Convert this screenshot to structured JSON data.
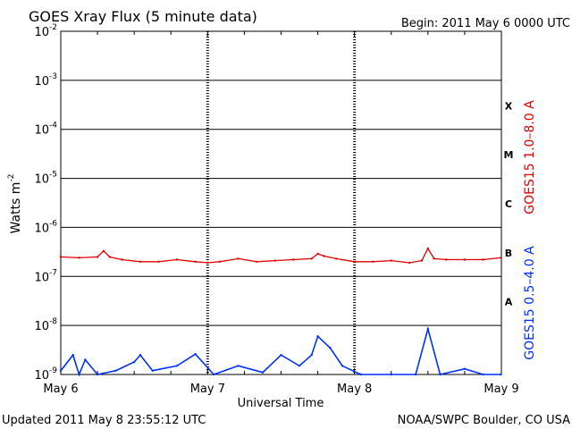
{
  "chart_data": {
    "type": "line",
    "title": "GOES Xray Flux (5 minute data)",
    "begin": "Begin:  2011 May 6 0000 UTC",
    "updated": "Updated 2011 May  8 23:55:12 UTC",
    "source": "NOAA/SWPC Boulder, CO USA",
    "xlabel": "Universal Time",
    "ylabel": "Watts m",
    "ylabel_sup": "-2",
    "y_scale": "log",
    "ylim": [
      1e-09,
      0.01
    ],
    "xlim": [
      "2011-05-06 00:00",
      "2011-05-09 00:00"
    ],
    "x_tick_labels": [
      "May 6",
      "May 7",
      "May 8",
      "May 9"
    ],
    "y_ticks": [
      {
        "base": "10",
        "exp": "-9",
        "value": 1e-09
      },
      {
        "base": "10",
        "exp": "-8",
        "value": 1e-08
      },
      {
        "base": "10",
        "exp": "-7",
        "value": 1e-07
      },
      {
        "base": "10",
        "exp": "-6",
        "value": 1e-06
      },
      {
        "base": "10",
        "exp": "-5",
        "value": 1e-05
      },
      {
        "base": "10",
        "exp": "-4",
        "value": 0.0001
      },
      {
        "base": "10",
        "exp": "-3",
        "value": 0.001
      },
      {
        "base": "10",
        "exp": "-2",
        "value": 0.01
      }
    ],
    "flare_classes": [
      {
        "label": "A",
        "min": 1e-08,
        "max": 1e-07
      },
      {
        "label": "B",
        "min": 1e-07,
        "max": 1e-06
      },
      {
        "label": "C",
        "min": 1e-06,
        "max": 1e-05
      },
      {
        "label": "M",
        "min": 1e-05,
        "max": 0.0001
      },
      {
        "label": "X",
        "min": 0.0001,
        "max": 0.001
      }
    ],
    "grid": true,
    "series": [
      {
        "name": "GOES15 1.0–8.0 A",
        "color": "#e00000",
        "x": [
          "2011-05-06 00:00",
          "2011-05-06 03:00",
          "2011-05-06 06:00",
          "2011-05-06 07:00",
          "2011-05-06 08:00",
          "2011-05-06 10:00",
          "2011-05-06 13:00",
          "2011-05-06 16:00",
          "2011-05-06 19:00",
          "2011-05-06 22:00",
          "2011-05-07 00:00",
          "2011-05-07 02:00",
          "2011-05-07 05:00",
          "2011-05-07 08:00",
          "2011-05-07 11:00",
          "2011-05-07 14:00",
          "2011-05-07 17:00",
          "2011-05-07 18:00",
          "2011-05-07 19:00",
          "2011-05-07 21:00",
          "2011-05-08 00:00",
          "2011-05-08 03:00",
          "2011-05-08 06:00",
          "2011-05-08 09:00",
          "2011-05-08 11:00",
          "2011-05-08 12:00",
          "2011-05-08 13:00",
          "2011-05-08 15:00",
          "2011-05-08 18:00",
          "2011-05-08 21:00",
          "2011-05-08 23:55"
        ],
        "values": [
          2.5e-07,
          2.4e-07,
          2.5e-07,
          3.3e-07,
          2.5e-07,
          2.2e-07,
          2e-07,
          2e-07,
          2.2e-07,
          2e-07,
          1.9e-07,
          2e-07,
          2.3e-07,
          2e-07,
          2.1e-07,
          2.2e-07,
          2.3e-07,
          2.9e-07,
          2.6e-07,
          2.3e-07,
          2e-07,
          2e-07,
          2.1e-07,
          1.9e-07,
          2.1e-07,
          3.7e-07,
          2.3e-07,
          2.2e-07,
          2.2e-07,
          2.2e-07,
          2.4e-07
        ]
      },
      {
        "name": "GOES15 0.5–4.0 A",
        "color": "#0030ff",
        "x": [
          "2011-05-06 00:00",
          "2011-05-06 02:00",
          "2011-05-06 03:00",
          "2011-05-06 04:00",
          "2011-05-06 06:00",
          "2011-05-06 09:00",
          "2011-05-06 12:00",
          "2011-05-06 13:00",
          "2011-05-06 15:00",
          "2011-05-06 19:00",
          "2011-05-06 22:00",
          "2011-05-07 01:00",
          "2011-05-07 05:00",
          "2011-05-07 09:00",
          "2011-05-07 12:00",
          "2011-05-07 15:00",
          "2011-05-07 17:00",
          "2011-05-07 18:00",
          "2011-05-07 20:00",
          "2011-05-07 22:00",
          "2011-05-08 01:00",
          "2011-05-08 06:00",
          "2011-05-08 10:00",
          "2011-05-08 12:00",
          "2011-05-08 14:00",
          "2011-05-08 18:00",
          "2011-05-08 21:00",
          "2011-05-08 23:55"
        ],
        "values": [
          1.2e-09,
          2.5e-09,
          1e-09,
          2e-09,
          1e-09,
          1.2e-09,
          1.8e-09,
          2.5e-09,
          1.2e-09,
          1.5e-09,
          2.6e-09,
          1e-09,
          1.5e-09,
          1.1e-09,
          2.5e-09,
          1.5e-09,
          2.5e-09,
          6e-09,
          3.5e-09,
          1.5e-09,
          1e-09,
          1e-09,
          1e-09,
          8.5e-09,
          1e-09,
          1.3e-09,
          1e-09,
          1e-09
        ]
      }
    ]
  }
}
